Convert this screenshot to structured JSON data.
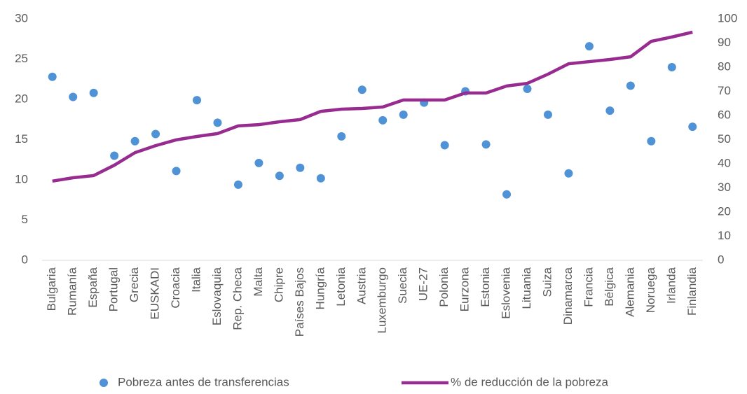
{
  "chart_data": {
    "type": "combo",
    "categories": [
      "Bulgaria",
      "Rumanía",
      "España",
      "Portugal",
      "Grecia",
      "EUSKADI",
      "Croacia",
      "Italia",
      "Eslovaquia",
      "Rep. Checa",
      "Malta",
      "Chipre",
      "Países Bajos",
      "Hungría",
      "Letonia",
      "Austria",
      "Luxemburgo",
      "Suecia",
      "UE-27",
      "Polonia",
      "Eurzona",
      "Estonia",
      "Eslovenia",
      "Lituania",
      "Suiza",
      "Dinamarca",
      "Francia",
      "Bélgica",
      "Alemania",
      "Noruega",
      "Irlanda",
      "Finlandia"
    ],
    "series": [
      {
        "name": "Pobreza antes de transferencias",
        "type": "scatter",
        "color": "#4f92d6",
        "values": [
          22.8,
          20.3,
          20.8,
          13.0,
          14.8,
          15.7,
          11.1,
          19.9,
          17.1,
          9.4,
          12.1,
          10.5,
          11.5,
          10.2,
          15.4,
          21.2,
          17.4,
          18.1,
          19.6,
          14.3,
          21.0,
          14.4,
          8.2,
          21.3,
          18.1,
          10.8,
          26.6,
          18.6,
          21.7,
          14.8,
          24.0,
          16.6
        ]
      },
      {
        "name": "% de reducción de la pobreza",
        "type": "line",
        "axis": "y2",
        "color": "#972b8f",
        "values": [
          32.8,
          34.2,
          35.1,
          39.4,
          44.6,
          47.5,
          49.9,
          51.3,
          52.5,
          55.7,
          56.2,
          57.4,
          58.3,
          61.7,
          62.6,
          62.9,
          63.5,
          66.4,
          66.4,
          66.4,
          69.3,
          69.3,
          72.2,
          73.3,
          77.1,
          81.4,
          82.3,
          83.2,
          84.3,
          90.7,
          92.5,
          94.5
        ]
      }
    ],
    "ylim": [
      0,
      30
    ],
    "yticks": [
      0,
      5,
      10,
      15,
      20,
      25,
      30
    ],
    "y2lim": [
      0,
      100
    ],
    "y2ticks": [
      0,
      10,
      20,
      30,
      40,
      50,
      60,
      70,
      80,
      90,
      100
    ],
    "grid": false,
    "legend": "bottom"
  }
}
